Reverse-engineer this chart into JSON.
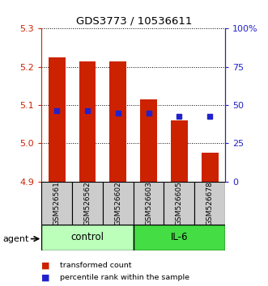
{
  "title": "GDS3773 / 10536611",
  "samples": [
    "GSM526561",
    "GSM526562",
    "GSM526602",
    "GSM526603",
    "GSM526605",
    "GSM526678"
  ],
  "red_values": [
    5.225,
    5.215,
    5.215,
    5.115,
    5.06,
    4.975
  ],
  "blue_values": [
    5.085,
    5.085,
    5.08,
    5.08,
    5.07,
    5.07
  ],
  "ylim": [
    4.9,
    5.3
  ],
  "yticks_left": [
    4.9,
    5.0,
    5.1,
    5.2,
    5.3
  ],
  "yticks_right": [
    0,
    25,
    50,
    75,
    100
  ],
  "ytick_labels_right": [
    "0",
    "25",
    "50",
    "75",
    "100%"
  ],
  "bar_base": 4.9,
  "bar_width": 0.55,
  "red_color": "#cc2200",
  "blue_color": "#2222cc",
  "control_color": "#bbffbb",
  "il6_color": "#44dd44",
  "sample_box_color": "#cccccc",
  "left_tick_color": "#cc2200",
  "right_tick_color": "#2222cc"
}
